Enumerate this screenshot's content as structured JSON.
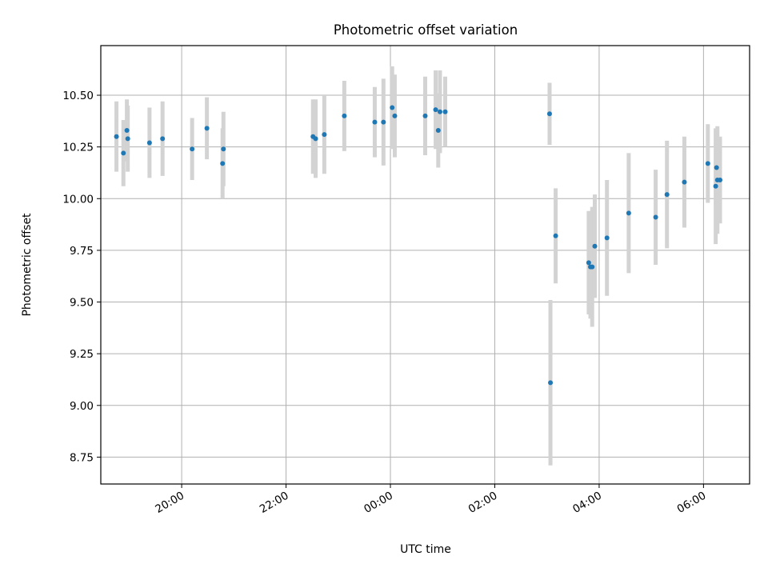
{
  "chart_data": {
    "type": "scatter",
    "title": "Photometric offset variation",
    "xlabel": "UTC time",
    "ylabel": "Photometric offset",
    "x_ticks": [
      "20:00",
      "22:00",
      "00:00",
      "02:00",
      "04:00",
      "06:00"
    ],
    "y_ticks": [
      "8.75",
      "9.00",
      "9.25",
      "9.50",
      "9.75",
      "10.00",
      "10.25",
      "10.50"
    ],
    "xlim": [
      "2024-01-01T18:27",
      "2024-01-02T06:53"
    ],
    "ylim": [
      8.62,
      10.74
    ],
    "grid": true,
    "colors": {
      "point": "#1f77b4",
      "errorbar": "#d3d3d3",
      "grid": "#b0b0b0"
    },
    "points": [
      {
        "x": "2024-01-01T18:45",
        "y": 10.3,
        "err": 0.17
      },
      {
        "x": "2024-01-01T18:53",
        "y": 10.22,
        "err": 0.16
      },
      {
        "x": "2024-01-01T18:57",
        "y": 10.33,
        "err": 0.15
      },
      {
        "x": "2024-01-01T18:58",
        "y": 10.29,
        "err": 0.16
      },
      {
        "x": "2024-01-01T19:23",
        "y": 10.27,
        "err": 0.17
      },
      {
        "x": "2024-01-01T19:38",
        "y": 10.29,
        "err": 0.18
      },
      {
        "x": "2024-01-01T20:12",
        "y": 10.24,
        "err": 0.15
      },
      {
        "x": "2024-01-01T20:29",
        "y": 10.34,
        "err": 0.15
      },
      {
        "x": "2024-01-01T20:47",
        "y": 10.17,
        "err": 0.17
      },
      {
        "x": "2024-01-01T20:48",
        "y": 10.24,
        "err": 0.18
      },
      {
        "x": "2024-01-01T22:31",
        "y": 10.3,
        "err": 0.18
      },
      {
        "x": "2024-01-01T22:34",
        "y": 10.29,
        "err": 0.19
      },
      {
        "x": "2024-01-01T22:44",
        "y": 10.31,
        "err": 0.19
      },
      {
        "x": "2024-01-01T23:07",
        "y": 10.4,
        "err": 0.17
      },
      {
        "x": "2024-01-01T23:42",
        "y": 10.37,
        "err": 0.17
      },
      {
        "x": "2024-01-01T23:52",
        "y": 10.37,
        "err": 0.21
      },
      {
        "x": "2024-01-02T00:02",
        "y": 10.44,
        "err": 0.2
      },
      {
        "x": "2024-01-02T00:05",
        "y": 10.4,
        "err": 0.2
      },
      {
        "x": "2024-01-02T00:40",
        "y": 10.4,
        "err": 0.19
      },
      {
        "x": "2024-01-02T00:52",
        "y": 10.43,
        "err": 0.19
      },
      {
        "x": "2024-01-02T00:55",
        "y": 10.33,
        "err": 0.18
      },
      {
        "x": "2024-01-02T00:57",
        "y": 10.42,
        "err": 0.2
      },
      {
        "x": "2024-01-02T01:03",
        "y": 10.42,
        "err": 0.17
      },
      {
        "x": "2024-01-02T03:03",
        "y": 10.41,
        "err": 0.15
      },
      {
        "x": "2024-01-02T03:04",
        "y": 9.11,
        "err": 0.4
      },
      {
        "x": "2024-01-02T03:10",
        "y": 9.82,
        "err": 0.23
      },
      {
        "x": "2024-01-02T03:48",
        "y": 9.69,
        "err": 0.25
      },
      {
        "x": "2024-01-02T03:50",
        "y": 9.67,
        "err": 0.25
      },
      {
        "x": "2024-01-02T03:52",
        "y": 9.67,
        "err": 0.29
      },
      {
        "x": "2024-01-02T03:55",
        "y": 9.77,
        "err": 0.25
      },
      {
        "x": "2024-01-02T04:09",
        "y": 9.81,
        "err": 0.28
      },
      {
        "x": "2024-01-02T04:34",
        "y": 9.93,
        "err": 0.29
      },
      {
        "x": "2024-01-02T05:05",
        "y": 9.91,
        "err": 0.23
      },
      {
        "x": "2024-01-02T05:18",
        "y": 10.02,
        "err": 0.26
      },
      {
        "x": "2024-01-02T05:38",
        "y": 10.08,
        "err": 0.22
      },
      {
        "x": "2024-01-02T06:05",
        "y": 10.17,
        "err": 0.19
      },
      {
        "x": "2024-01-02T06:14",
        "y": 10.06,
        "err": 0.28
      },
      {
        "x": "2024-01-02T06:15",
        "y": 10.15,
        "err": 0.18
      },
      {
        "x": "2024-01-02T06:16",
        "y": 10.09,
        "err": 0.26
      },
      {
        "x": "2024-01-02T06:19",
        "y": 10.09,
        "err": 0.21
      }
    ]
  }
}
